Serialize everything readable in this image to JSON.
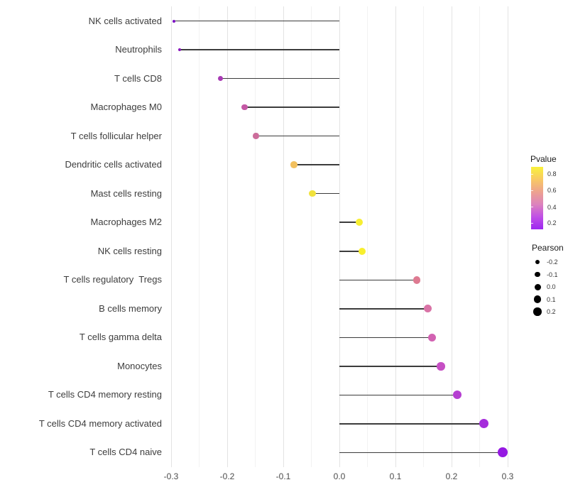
{
  "chart_data": {
    "type": "lollipop",
    "orientation": "horizontal",
    "title": "",
    "xlabel": "",
    "ylabel": "",
    "xlim": [
      -0.33,
      0.34
    ],
    "x_tick_values": [
      -0.3,
      -0.2,
      -0.1,
      0.0,
      0.1,
      0.2,
      0.3
    ],
    "x_tick_labels": [
      "-0.3",
      "-0.2",
      "-0.1",
      "0.0",
      "0.1",
      "0.2",
      "0.3"
    ],
    "x_minor_tick_values": [
      -0.25,
      -0.15,
      -0.05,
      0.05,
      0.15,
      0.25
    ],
    "grid": "vertical major + minor gridlines, light gray, no axis lines (minimal theme)",
    "legend_position": "right",
    "rows": [
      {
        "label": "NK cells activated",
        "pearson": -0.295,
        "dot_color": "#7c12c4",
        "dot_size": 4
      },
      {
        "label": "Neutrophils",
        "pearson": -0.285,
        "dot_color": "#8a16bd",
        "dot_size": 4.5
      },
      {
        "label": "T cells CD8",
        "pearson": -0.212,
        "dot_color": "#a83ab4",
        "dot_size": 7.5
      },
      {
        "label": "Macrophages M0",
        "pearson": -0.169,
        "dot_color": "#c458a5",
        "dot_size": 8.5
      },
      {
        "label": "T cells follicular helper",
        "pearson": -0.149,
        "dot_color": "#cc6d9b",
        "dot_size": 8.5
      },
      {
        "label": "Dendritic cells activated",
        "pearson": -0.081,
        "dot_color": "#f2c05e",
        "dot_size": 9.5
      },
      {
        "label": "Mast cells resting",
        "pearson": -0.048,
        "dot_color": "#f1e23c",
        "dot_size": 9.5
      },
      {
        "label": "Macrophages M2",
        "pearson": 0.035,
        "dot_color": "#f7ee32",
        "dot_size": 10
      },
      {
        "label": "NK cells resting",
        "pearson": 0.041,
        "dot_color": "#f8ef2e",
        "dot_size": 10
      },
      {
        "label": "T cells regulatory  Tregs",
        "pearson": 0.138,
        "dot_color": "#de7a91",
        "dot_size": 10.5
      },
      {
        "label": "B cells memory",
        "pearson": 0.157,
        "dot_color": "#d973a6",
        "dot_size": 11
      },
      {
        "label": "T cells gamma delta",
        "pearson": 0.165,
        "dot_color": "#d262b2",
        "dot_size": 11
      },
      {
        "label": "Monocytes",
        "pearson": 0.181,
        "dot_color": "#c64fc4",
        "dot_size": 11.5
      },
      {
        "label": "T cells CD4 memory resting",
        "pearson": 0.21,
        "dot_color": "#b53ed1",
        "dot_size": 12
      },
      {
        "label": "T cells CD4 memory activated",
        "pearson": 0.258,
        "dot_color": "#a52cdb",
        "dot_size": 13
      },
      {
        "label": "T cells CD4 naive",
        "pearson": 0.291,
        "dot_color": "#9519e2",
        "dot_size": 14
      }
    ],
    "legends": {
      "pvalue": {
        "title": "Pvalue",
        "tick_labels": [
          "0.8",
          "0.6",
          "0.4",
          "0.2"
        ],
        "gradient_top_to_bottom": [
          "#f9f23b",
          "#f8c964",
          "#eda28f",
          "#dc83bd",
          "#c04fe6",
          "#9c28f0"
        ]
      },
      "pearson": {
        "title": "Pearson",
        "items": [
          {
            "label": "-0.2",
            "dot_size": 6
          },
          {
            "label": "-0.1",
            "dot_size": 7.5
          },
          {
            "label": "0.0",
            "dot_size": 9
          },
          {
            "label": "0.1",
            "dot_size": 10.5
          },
          {
            "label": "0.2",
            "dot_size": 11.5
          }
        ]
      }
    },
    "colors": {
      "stem": "#3c3c3c",
      "grid_major": "#e3e3e3",
      "grid_minor": "#f2f2f2",
      "axis_text": "#4c4c4c",
      "category_text": "#3d3d3d",
      "background": "#ffffff"
    }
  }
}
